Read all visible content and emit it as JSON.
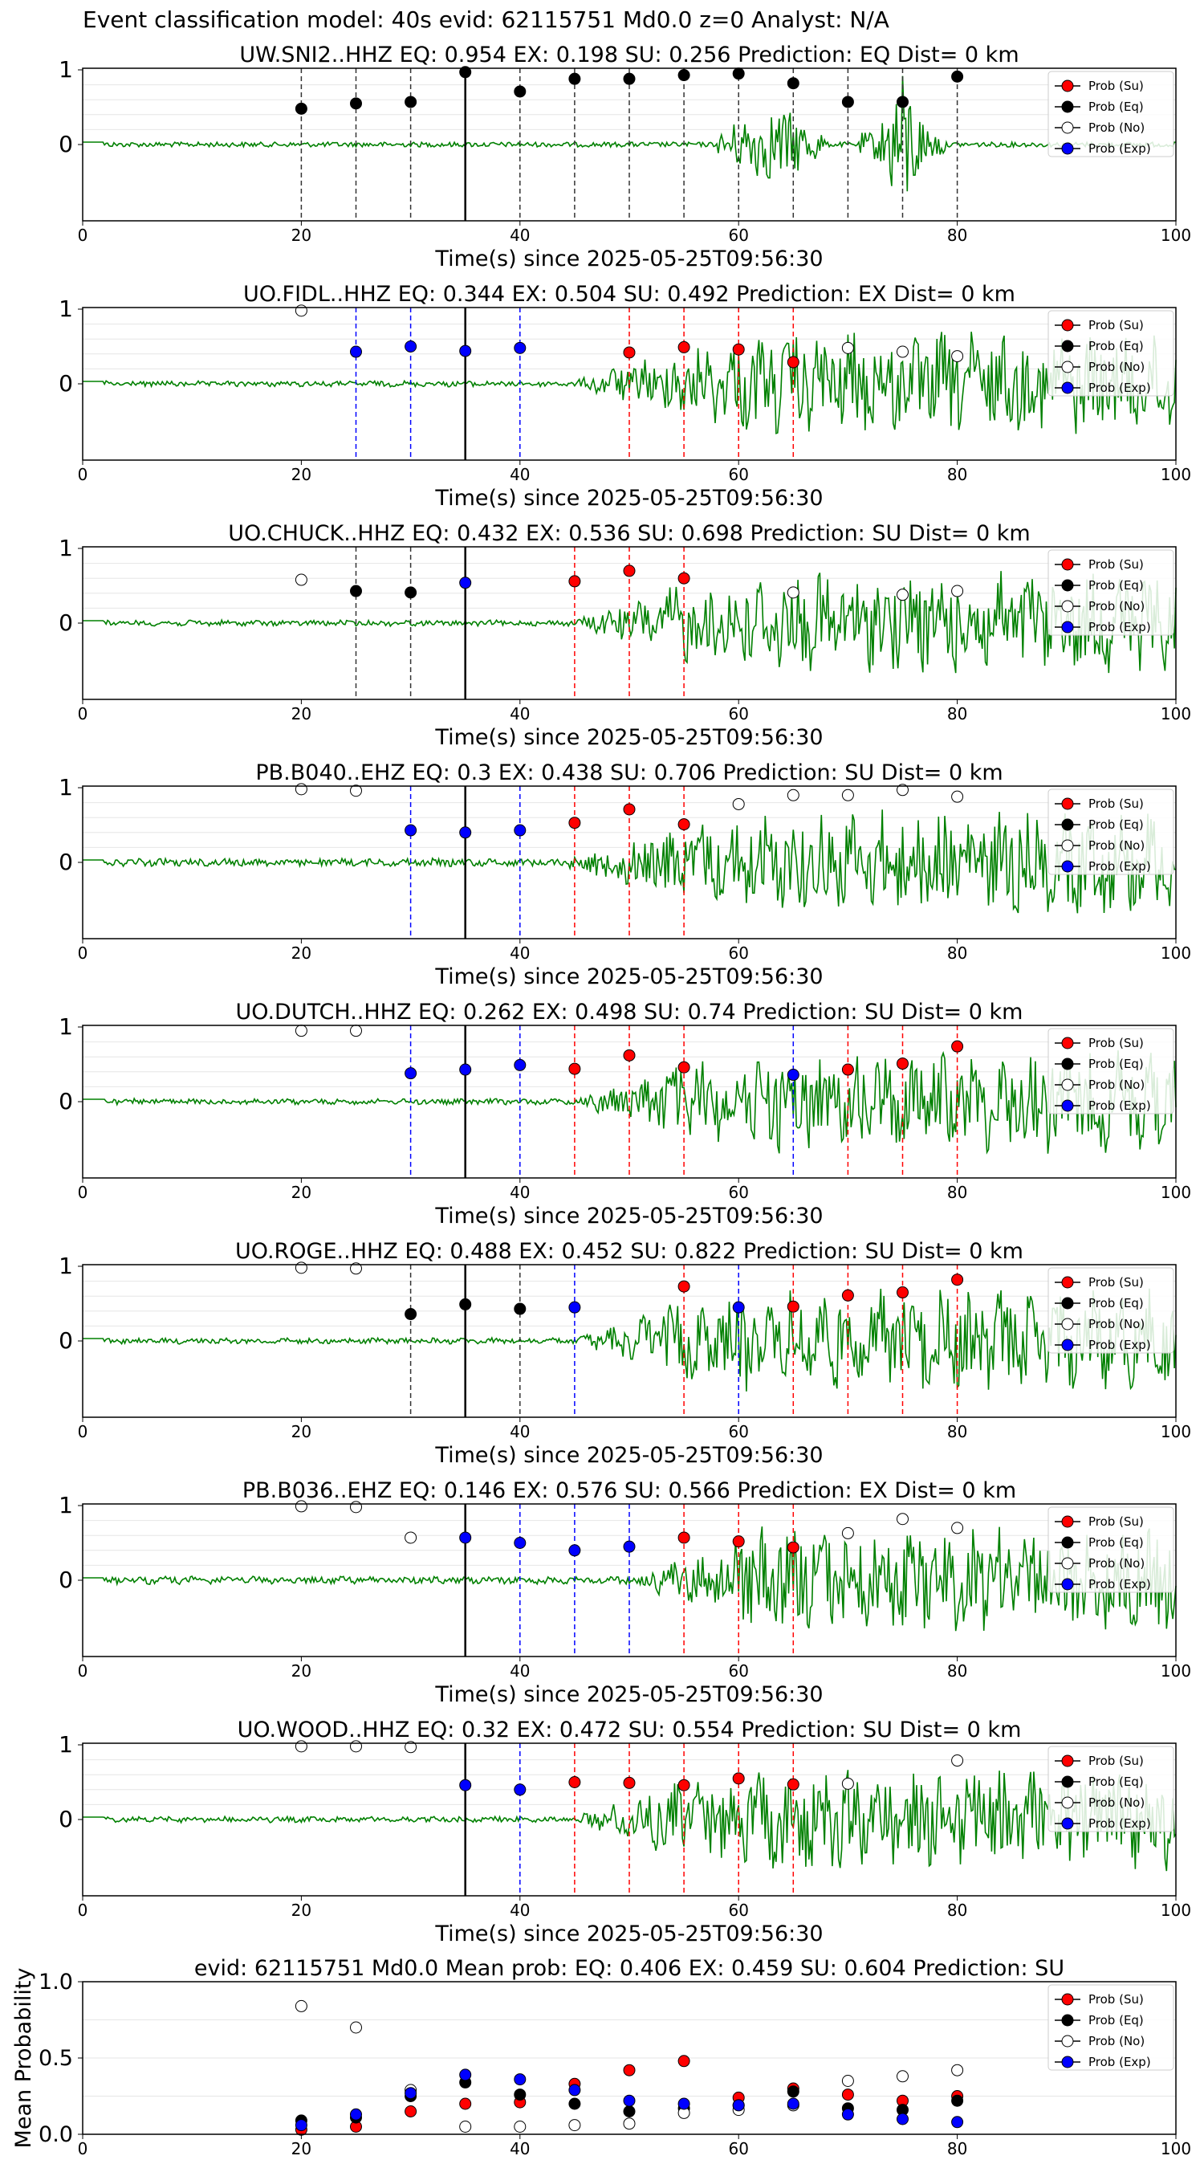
{
  "figure_title": "Event classification model: 40s evid: 62115751 Md0.0 z=0 Analyst: N/A",
  "legend_labels": [
    "Prob (Su)",
    "Prob (Eq)",
    "Prob (No)",
    "Prob (Exp)"
  ],
  "colors": {
    "su": "#ff0000",
    "eq": "#000000",
    "no": "#ffffff",
    "exp": "#0000ff",
    "trace": "#008000"
  },
  "chart_data": [
    {
      "type": "scatter",
      "title": "UW.SNI2..HHZ   EQ: 0.954  EX: 0.198  SU: 0.256   Prediction: EQ    Dist= 0 km",
      "xlabel": "Time(s) since 2025-05-25T09:56:30",
      "ylabel": "",
      "xlim": [
        0,
        100
      ],
      "xticks": [
        "0",
        "20",
        "40",
        "60",
        "80",
        "100"
      ],
      "yticks": [
        "0",
        "1"
      ],
      "arrival_time": 35,
      "trace_style": "eq-burst",
      "points": [
        {
          "x": 20,
          "y": 0.48,
          "cls": "eq"
        },
        {
          "x": 25,
          "y": 0.55,
          "cls": "eq"
        },
        {
          "x": 30,
          "y": 0.57,
          "cls": "eq"
        },
        {
          "x": 35,
          "y": 0.97,
          "cls": "eq"
        },
        {
          "x": 40,
          "y": 0.71,
          "cls": "eq"
        },
        {
          "x": 45,
          "y": 0.88,
          "cls": "eq"
        },
        {
          "x": 50,
          "y": 0.88,
          "cls": "eq"
        },
        {
          "x": 55,
          "y": 0.93,
          "cls": "eq"
        },
        {
          "x": 60,
          "y": 0.95,
          "cls": "eq"
        },
        {
          "x": 65,
          "y": 0.82,
          "cls": "eq"
        },
        {
          "x": 70,
          "y": 0.57,
          "cls": "eq"
        },
        {
          "x": 75,
          "y": 0.57,
          "cls": "eq"
        },
        {
          "x": 80,
          "y": 0.91,
          "cls": "eq"
        }
      ]
    },
    {
      "type": "scatter",
      "title": "UO.FIDL..HHZ   EQ: 0.344  EX: 0.504  SU: 0.492   Prediction: EX    Dist= 0 km",
      "xlabel": "Time(s) since 2025-05-25T09:56:30",
      "ylabel": "",
      "xlim": [
        0,
        100
      ],
      "xticks": [
        "0",
        "20",
        "40",
        "60",
        "80",
        "100"
      ],
      "yticks": [
        "0",
        "1"
      ],
      "arrival_time": 35,
      "trace_style": "surface",
      "points": [
        {
          "x": 20,
          "y": 0.98,
          "cls": "no"
        },
        {
          "x": 25,
          "y": 0.43,
          "cls": "exp"
        },
        {
          "x": 30,
          "y": 0.5,
          "cls": "exp"
        },
        {
          "x": 35,
          "y": 0.44,
          "cls": "exp"
        },
        {
          "x": 40,
          "y": 0.48,
          "cls": "exp"
        },
        {
          "x": 50,
          "y": 0.42,
          "cls": "su"
        },
        {
          "x": 55,
          "y": 0.49,
          "cls": "su"
        },
        {
          "x": 60,
          "y": 0.46,
          "cls": "su"
        },
        {
          "x": 65,
          "y": 0.29,
          "cls": "su"
        },
        {
          "x": 70,
          "y": 0.48,
          "cls": "no"
        },
        {
          "x": 75,
          "y": 0.43,
          "cls": "no"
        },
        {
          "x": 80,
          "y": 0.37,
          "cls": "no"
        }
      ]
    },
    {
      "type": "scatter",
      "title": "UO.CHUCK..HHZ   EQ: 0.432  EX: 0.536  SU: 0.698   Prediction: SU    Dist= 0 km",
      "xlabel": "Time(s) since 2025-05-25T09:56:30",
      "ylabel": "",
      "xlim": [
        0,
        100
      ],
      "xticks": [
        "0",
        "20",
        "40",
        "60",
        "80",
        "100"
      ],
      "yticks": [
        "0",
        "1"
      ],
      "arrival_time": 35,
      "trace_style": "surface",
      "points": [
        {
          "x": 20,
          "y": 0.58,
          "cls": "no"
        },
        {
          "x": 25,
          "y": 0.43,
          "cls": "eq"
        },
        {
          "x": 30,
          "y": 0.41,
          "cls": "eq"
        },
        {
          "x": 35,
          "y": 0.54,
          "cls": "exp"
        },
        {
          "x": 45,
          "y": 0.56,
          "cls": "su"
        },
        {
          "x": 50,
          "y": 0.7,
          "cls": "su"
        },
        {
          "x": 55,
          "y": 0.6,
          "cls": "su"
        },
        {
          "x": 65,
          "y": 0.41,
          "cls": "no"
        },
        {
          "x": 75,
          "y": 0.38,
          "cls": "no"
        },
        {
          "x": 80,
          "y": 0.43,
          "cls": "no"
        }
      ]
    },
    {
      "type": "scatter",
      "title": "PB.B040..EHZ   EQ: 0.3  EX: 0.438  SU: 0.706   Prediction: SU    Dist= 0 km",
      "xlabel": "Time(s) since 2025-05-25T09:56:30",
      "ylabel": "",
      "xlim": [
        0,
        100
      ],
      "xticks": [
        "0",
        "20",
        "40",
        "60",
        "80",
        "100"
      ],
      "yticks": [
        "0",
        "1"
      ],
      "arrival_time": 35,
      "trace_style": "surface-early",
      "points": [
        {
          "x": 20,
          "y": 0.98,
          "cls": "no"
        },
        {
          "x": 25,
          "y": 0.96,
          "cls": "no"
        },
        {
          "x": 30,
          "y": 0.43,
          "cls": "exp"
        },
        {
          "x": 35,
          "y": 0.4,
          "cls": "exp"
        },
        {
          "x": 40,
          "y": 0.43,
          "cls": "exp"
        },
        {
          "x": 45,
          "y": 0.53,
          "cls": "su"
        },
        {
          "x": 50,
          "y": 0.71,
          "cls": "su"
        },
        {
          "x": 55,
          "y": 0.51,
          "cls": "su"
        },
        {
          "x": 60,
          "y": 0.78,
          "cls": "no"
        },
        {
          "x": 65,
          "y": 0.9,
          "cls": "no"
        },
        {
          "x": 70,
          "y": 0.9,
          "cls": "no"
        },
        {
          "x": 75,
          "y": 0.97,
          "cls": "no"
        },
        {
          "x": 80,
          "y": 0.88,
          "cls": "no"
        }
      ]
    },
    {
      "type": "scatter",
      "title": "UO.DUTCH..HHZ   EQ: 0.262  EX: 0.498  SU: 0.74   Prediction: SU    Dist= 0 km",
      "xlabel": "Time(s) since 2025-05-25T09:56:30",
      "ylabel": "",
      "xlim": [
        0,
        100
      ],
      "xticks": [
        "0",
        "20",
        "40",
        "60",
        "80",
        "100"
      ],
      "yticks": [
        "0",
        "1"
      ],
      "arrival_time": 35,
      "trace_style": "surface",
      "points": [
        {
          "x": 20,
          "y": 0.95,
          "cls": "no"
        },
        {
          "x": 25,
          "y": 0.95,
          "cls": "no"
        },
        {
          "x": 30,
          "y": 0.38,
          "cls": "exp"
        },
        {
          "x": 35,
          "y": 0.43,
          "cls": "exp"
        },
        {
          "x": 40,
          "y": 0.49,
          "cls": "exp"
        },
        {
          "x": 45,
          "y": 0.44,
          "cls": "su"
        },
        {
          "x": 50,
          "y": 0.62,
          "cls": "su"
        },
        {
          "x": 55,
          "y": 0.46,
          "cls": "su"
        },
        {
          "x": 65,
          "y": 0.36,
          "cls": "exp"
        },
        {
          "x": 70,
          "y": 0.43,
          "cls": "su"
        },
        {
          "x": 75,
          "y": 0.51,
          "cls": "su"
        },
        {
          "x": 80,
          "y": 0.74,
          "cls": "su"
        }
      ]
    },
    {
      "type": "scatter",
      "title": "UO.ROGE..HHZ   EQ: 0.488  EX: 0.452  SU: 0.822   Prediction: SU    Dist= 0 km",
      "xlabel": "Time(s) since 2025-05-25T09:56:30",
      "ylabel": "",
      "xlim": [
        0,
        100
      ],
      "xticks": [
        "0",
        "20",
        "40",
        "60",
        "80",
        "100"
      ],
      "yticks": [
        "0",
        "1"
      ],
      "arrival_time": 35,
      "trace_style": "surface",
      "points": [
        {
          "x": 20,
          "y": 0.98,
          "cls": "no"
        },
        {
          "x": 25,
          "y": 0.97,
          "cls": "no"
        },
        {
          "x": 30,
          "y": 0.36,
          "cls": "eq"
        },
        {
          "x": 35,
          "y": 0.49,
          "cls": "eq"
        },
        {
          "x": 40,
          "y": 0.43,
          "cls": "eq"
        },
        {
          "x": 45,
          "y": 0.45,
          "cls": "exp"
        },
        {
          "x": 55,
          "y": 0.73,
          "cls": "su"
        },
        {
          "x": 60,
          "y": 0.45,
          "cls": "exp"
        },
        {
          "x": 65,
          "y": 0.46,
          "cls": "su"
        },
        {
          "x": 70,
          "y": 0.61,
          "cls": "su"
        },
        {
          "x": 75,
          "y": 0.65,
          "cls": "su"
        },
        {
          "x": 80,
          "y": 0.82,
          "cls": "su"
        }
      ]
    },
    {
      "type": "scatter",
      "title": "PB.B036..EHZ   EQ: 0.146  EX: 0.576  SU: 0.566   Prediction: EX    Dist= 0 km",
      "xlabel": "Time(s) since 2025-05-25T09:56:30",
      "ylabel": "",
      "xlim": [
        0,
        100
      ],
      "xticks": [
        "0",
        "20",
        "40",
        "60",
        "80",
        "100"
      ],
      "yticks": [
        "0",
        "1"
      ],
      "arrival_time": 35,
      "trace_style": "surface-noisy",
      "points": [
        {
          "x": 20,
          "y": 0.99,
          "cls": "no"
        },
        {
          "x": 25,
          "y": 0.98,
          "cls": "no"
        },
        {
          "x": 30,
          "y": 0.57,
          "cls": "no"
        },
        {
          "x": 35,
          "y": 0.57,
          "cls": "exp"
        },
        {
          "x": 40,
          "y": 0.5,
          "cls": "exp"
        },
        {
          "x": 45,
          "y": 0.4,
          "cls": "exp"
        },
        {
          "x": 50,
          "y": 0.45,
          "cls": "exp"
        },
        {
          "x": 55,
          "y": 0.57,
          "cls": "su"
        },
        {
          "x": 60,
          "y": 0.52,
          "cls": "su"
        },
        {
          "x": 65,
          "y": 0.44,
          "cls": "su"
        },
        {
          "x": 70,
          "y": 0.63,
          "cls": "no"
        },
        {
          "x": 75,
          "y": 0.82,
          "cls": "no"
        },
        {
          "x": 80,
          "y": 0.7,
          "cls": "no"
        }
      ]
    },
    {
      "type": "scatter",
      "title": "UO.WOOD..HHZ   EQ: 0.32  EX: 0.472  SU: 0.554   Prediction: SU    Dist= 0 km",
      "xlabel": "Time(s) since 2025-05-25T09:56:30",
      "ylabel": "",
      "xlim": [
        0,
        100
      ],
      "xticks": [
        "0",
        "20",
        "40",
        "60",
        "80",
        "100"
      ],
      "yticks": [
        "0",
        "1"
      ],
      "arrival_time": 35,
      "trace_style": "surface",
      "points": [
        {
          "x": 20,
          "y": 0.98,
          "cls": "no"
        },
        {
          "x": 25,
          "y": 0.98,
          "cls": "no"
        },
        {
          "x": 30,
          "y": 0.97,
          "cls": "no"
        },
        {
          "x": 35,
          "y": 0.46,
          "cls": "exp"
        },
        {
          "x": 40,
          "y": 0.4,
          "cls": "exp"
        },
        {
          "x": 45,
          "y": 0.5,
          "cls": "su"
        },
        {
          "x": 50,
          "y": 0.49,
          "cls": "su"
        },
        {
          "x": 55,
          "y": 0.46,
          "cls": "su"
        },
        {
          "x": 60,
          "y": 0.55,
          "cls": "su"
        },
        {
          "x": 65,
          "y": 0.47,
          "cls": "su"
        },
        {
          "x": 70,
          "y": 0.48,
          "cls": "no"
        },
        {
          "x": 80,
          "y": 0.79,
          "cls": "no"
        }
      ]
    },
    {
      "type": "scatter",
      "title": "evid: 62115751   Md0.0    Mean prob:    EQ: 0.406  EX: 0.459  SU: 0.604   Prediction: SU",
      "xlabel": "",
      "ylabel": "Mean Probability",
      "xlim": [
        0,
        100
      ],
      "ylim": [
        0,
        1
      ],
      "xticks": [
        "0",
        "20",
        "40",
        "60",
        "80",
        "100"
      ],
      "yticks": [
        "0.0",
        "0.5",
        "1.0"
      ],
      "x": [
        20,
        25,
        30,
        35,
        40,
        45,
        50,
        55,
        60,
        65,
        70,
        75,
        80
      ],
      "series": [
        {
          "key": "su",
          "values": [
            0.03,
            0.05,
            0.15,
            0.2,
            0.21,
            0.33,
            0.42,
            0.48,
            0.24,
            0.3,
            0.26,
            0.22,
            0.25
          ]
        },
        {
          "key": "eq",
          "values": [
            0.09,
            0.11,
            0.25,
            0.34,
            0.26,
            0.2,
            0.15,
            0.17,
            0.19,
            0.28,
            0.17,
            0.16,
            0.22
          ]
        },
        {
          "key": "no",
          "values": [
            0.84,
            0.7,
            0.29,
            0.05,
            0.05,
            0.06,
            0.07,
            0.14,
            0.16,
            0.19,
            0.35,
            0.38,
            0.42
          ]
        },
        {
          "key": "exp",
          "values": [
            0.06,
            0.13,
            0.27,
            0.39,
            0.36,
            0.29,
            0.22,
            0.2,
            0.19,
            0.2,
            0.13,
            0.1,
            0.08
          ]
        }
      ]
    }
  ]
}
